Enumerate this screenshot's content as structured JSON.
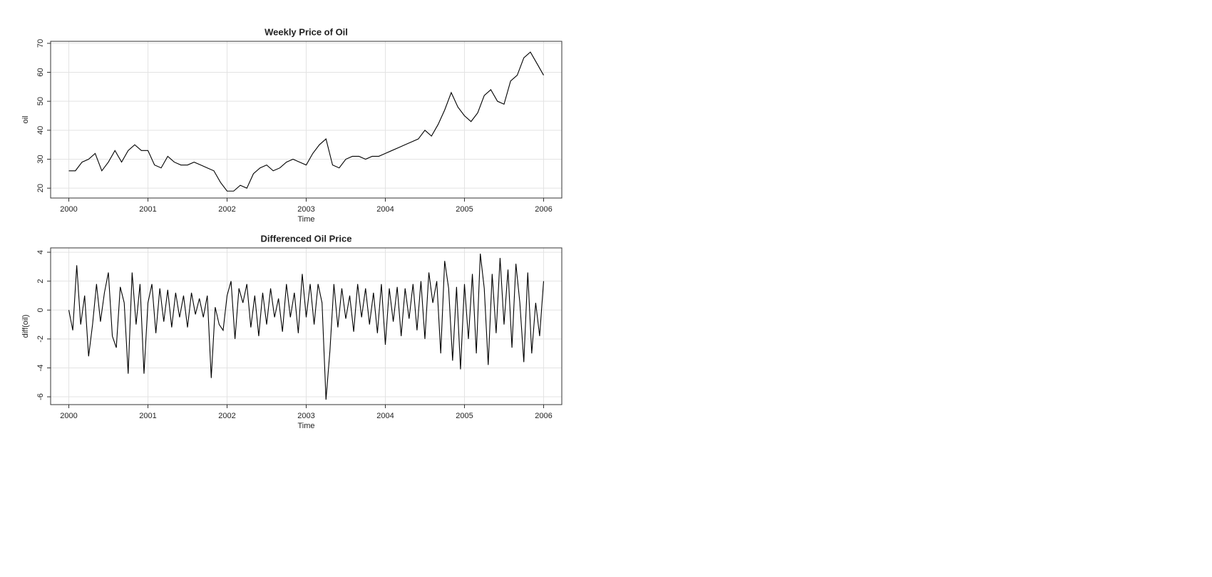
{
  "chart_data": [
    {
      "type": "line",
      "title": "Weekly Price of Oil",
      "x_label": "Time",
      "y_label": "oil",
      "grid": true,
      "x": [
        2000,
        2000.083,
        2000.167,
        2000.25,
        2000.333,
        2000.417,
        2000.5,
        2000.583,
        2000.667,
        2000.75,
        2000.833,
        2000.917,
        2001,
        2001.083,
        2001.167,
        2001.25,
        2001.333,
        2001.417,
        2001.5,
        2001.583,
        2001.667,
        2001.75,
        2001.833,
        2001.917,
        2002,
        2002.083,
        2002.167,
        2002.25,
        2002.333,
        2002.417,
        2002.5,
        2002.583,
        2002.667,
        2002.75,
        2002.833,
        2002.917,
        2003,
        2003.083,
        2003.167,
        2003.25,
        2003.333,
        2003.417,
        2003.5,
        2003.583,
        2003.667,
        2003.75,
        2003.833,
        2003.917,
        2004,
        2004.083,
        2004.167,
        2004.25,
        2004.333,
        2004.417,
        2004.5,
        2004.583,
        2004.667,
        2004.75,
        2004.833,
        2004.917,
        2005,
        2005.083,
        2005.167,
        2005.25,
        2005.333,
        2005.417,
        2005.5,
        2005.583,
        2005.667,
        2005.75,
        2005.833,
        2005.917,
        2006
      ],
      "series": [
        {
          "color": "#000000",
          "values": [
            26,
            26,
            29,
            30,
            32,
            26,
            29,
            33,
            29,
            33,
            35,
            33,
            33,
            28,
            27,
            31,
            29,
            28,
            28,
            29,
            28,
            27,
            26,
            22,
            19,
            19,
            21,
            20,
            25,
            27,
            28,
            26,
            27,
            29,
            30,
            29,
            28,
            32,
            35,
            37,
            28,
            27,
            30,
            31,
            31,
            30,
            31,
            31,
            32,
            33,
            34,
            35,
            36,
            37,
            40,
            38,
            42,
            47,
            53,
            48,
            45,
            43,
            46,
            52,
            54,
            50,
            49,
            57,
            59,
            65,
            67,
            63,
            59
          ]
        }
      ],
      "xlim": [
        1999.77,
        2006.23
      ],
      "xticks": [
        2000,
        2001,
        2002,
        2003,
        2004,
        2005,
        2006
      ],
      "ylim": [
        16.6,
        70.7
      ],
      "yticks": [
        20,
        30,
        40,
        50,
        60,
        70
      ]
    },
    {
      "type": "line",
      "title": "Differenced Oil Price",
      "x_label": "Time",
      "y_label": "diff(oil)",
      "grid": true,
      "x": [
        2000,
        2000.05,
        2000.1,
        2000.15,
        2000.2,
        2000.25,
        2000.3,
        2000.35,
        2000.4,
        2000.45,
        2000.5,
        2000.55,
        2000.6,
        2000.65,
        2000.7,
        2000.75,
        2000.8,
        2000.85,
        2000.9,
        2000.95,
        2001,
        2001.05,
        2001.1,
        2001.15,
        2001.2,
        2001.25,
        2001.3,
        2001.35,
        2001.4,
        2001.45,
        2001.5,
        2001.55,
        2001.6,
        2001.65,
        2001.7,
        2001.75,
        2001.8,
        2001.85,
        2001.9,
        2001.95,
        2002,
        2002.05,
        2002.1,
        2002.15,
        2002.2,
        2002.25,
        2002.3,
        2002.35,
        2002.4,
        2002.45,
        2002.5,
        2002.55,
        2002.6,
        2002.65,
        2002.7,
        2002.75,
        2002.8,
        2002.85,
        2002.9,
        2002.95,
        2003,
        2003.05,
        2003.1,
        2003.15,
        2003.2,
        2003.25,
        2003.3,
        2003.35,
        2003.4,
        2003.45,
        2003.5,
        2003.55,
        2003.6,
        2003.65,
        2003.7,
        2003.75,
        2003.8,
        2003.85,
        2003.9,
        2003.95,
        2004,
        2004.05,
        2004.1,
        2004.15,
        2004.2,
        2004.25,
        2004.3,
        2004.35,
        2004.4,
        2004.45,
        2004.5,
        2004.55,
        2004.6,
        2004.65,
        2004.7,
        2004.75,
        2004.8,
        2004.85,
        2004.9,
        2004.95,
        2005,
        2005.05,
        2005.1,
        2005.15,
        2005.2,
        2005.25,
        2005.3,
        2005.35,
        2005.4,
        2005.45,
        2005.5,
        2005.55,
        2005.6,
        2005.65,
        2005.7,
        2005.75,
        2005.8,
        2005.85,
        2005.9,
        2005.95,
        2006
      ],
      "series": [
        {
          "color": "#000000",
          "values": [
            0,
            -1.4,
            3.1,
            -1,
            1,
            -3.2,
            -1,
            1.8,
            -0.8,
            1.2,
            2.6,
            -1.8,
            -2.6,
            1.6,
            0.5,
            -4.4,
            2.6,
            -1,
            1.8,
            -4.4,
            0.5,
            1.8,
            -1.6,
            1.5,
            -0.8,
            1.4,
            -1.2,
            1.2,
            -0.5,
            1,
            -1.2,
            1.2,
            -0.3,
            0.8,
            -0.5,
            1,
            -4.7,
            0.2,
            -1,
            -1.4,
            1,
            2,
            -2,
            1.5,
            0.5,
            1.8,
            -1.2,
            1,
            -1.8,
            1.2,
            -1,
            1.5,
            -0.5,
            0.8,
            -1.5,
            1.8,
            -0.5,
            1.2,
            -1.6,
            2.5,
            -0.5,
            1.8,
            -1,
            1.8,
            0.5,
            -6.2,
            -2.8,
            1.8,
            -1.2,
            1.5,
            -0.6,
            1,
            -1.5,
            1.8,
            -0.5,
            1.5,
            -1,
            1.2,
            -1.6,
            1.8,
            -2.4,
            1.5,
            -0.8,
            1.6,
            -1.8,
            1.5,
            -0.6,
            1.8,
            -1.4,
            2,
            -2,
            2.6,
            0.5,
            2,
            -3,
            3.4,
            1.5,
            -3.5,
            1.6,
            -4.1,
            1.8,
            -2,
            2.5,
            -3,
            3.9,
            1.5,
            -3.8,
            2.5,
            -1.6,
            3.6,
            -1,
            2.8,
            -2.6,
            3.2,
            0.5,
            -3.6,
            2.6,
            -3,
            0.5,
            -1.8,
            2
          ]
        }
      ],
      "xlim": [
        1999.77,
        2006.23
      ],
      "xticks": [
        2000,
        2001,
        2002,
        2003,
        2004,
        2005,
        2006
      ],
      "ylim": [
        -6.54,
        4.3
      ],
      "yticks": [
        -6,
        -4,
        -2,
        0,
        2,
        4
      ]
    }
  ]
}
